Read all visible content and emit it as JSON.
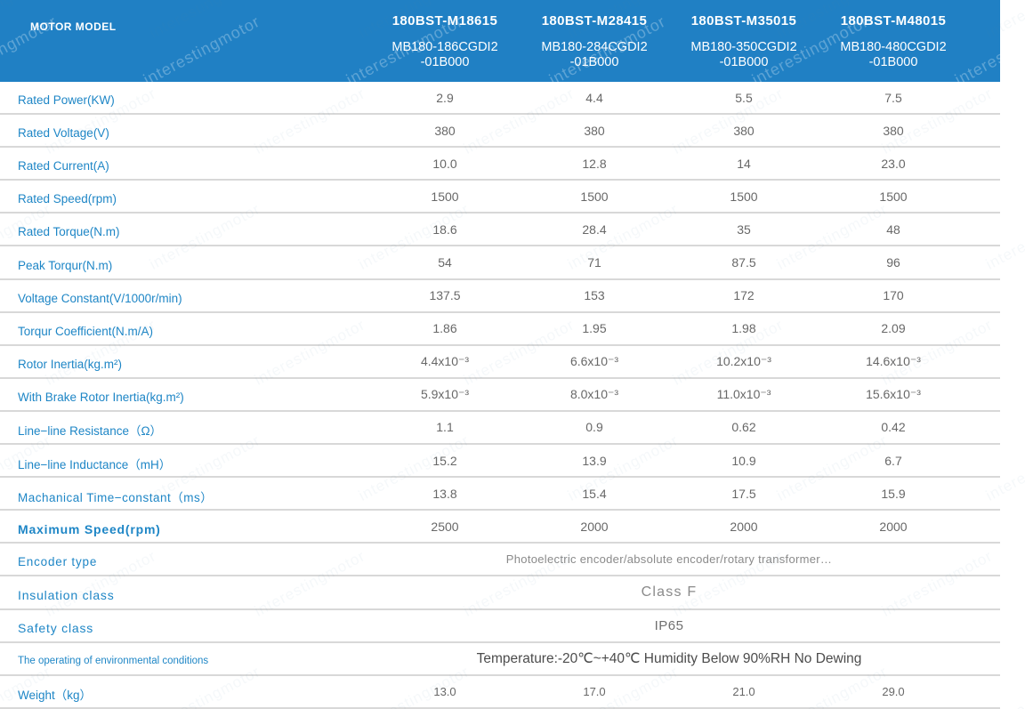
{
  "watermark": {
    "text": "interestingmotor"
  },
  "colors": {
    "header_bg": "#2080c4",
    "label_blue": "#1e86c6",
    "value_gray": "#686868",
    "line": "#d8d8d8"
  },
  "header": {
    "corner_label": "MOTOR MODEL",
    "columns": [
      {
        "model": "180BST-M18615",
        "code_line1": "MB180-186CGDI2",
        "code_line2": "-01B000"
      },
      {
        "model": "180BST-M28415",
        "code_line1": "MB180-284CGDI2",
        "code_line2": "-01B000"
      },
      {
        "model": "180BST-M35015",
        "code_line1": "MB180-350CGDI2",
        "code_line2": "-01B000"
      },
      {
        "model": "180BST-M48015",
        "code_line1": "MB180-480CGDI2",
        "code_line2": "-01B000"
      }
    ]
  },
  "rows": [
    {
      "label": "Rated Power(KW)",
      "values": [
        "2.9",
        "4.4",
        "5.5",
        "7.5"
      ]
    },
    {
      "label": "Rated Voltage(V)",
      "values": [
        "380",
        "380",
        "380",
        "380"
      ]
    },
    {
      "label": "Rated Current(A)",
      "values": [
        "10.0",
        "12.8",
        "14",
        "23.0"
      ]
    },
    {
      "label": "Rated Speed(rpm)",
      "values": [
        "1500",
        "1500",
        "1500",
        "1500"
      ]
    },
    {
      "label": "Rated Torque(N.m)",
      "values": [
        "18.6",
        "28.4",
        "35",
        "48"
      ]
    },
    {
      "label": "Peak Torqur(N.m)",
      "values": [
        "54",
        "71",
        "87.5",
        "96"
      ]
    },
    {
      "label": "Voltage Constant(V/1000r/min)",
      "values": [
        "137.5",
        "153",
        "172",
        "170"
      ]
    },
    {
      "label": "Torqur Coefficient(N.m/A)",
      "values": [
        "1.86",
        "1.95",
        "1.98",
        "2.09"
      ]
    },
    {
      "label": "Rotor Inertia(kg.m²)",
      "values": [
        "4.4x10⁻³",
        "6.6x10⁻³",
        "10.2x10⁻³",
        "14.6x10⁻³"
      ]
    },
    {
      "label": "With Brake Rotor Inertia(kg.m²)",
      "values": [
        "5.9x10⁻³",
        "8.0x10⁻³",
        "11.0x10⁻³",
        "15.6x10⁻³"
      ]
    },
    {
      "label": "Line−line Resistance（Ω）",
      "values": [
        "1.1",
        "0.9",
        "0.62",
        "0.42"
      ]
    },
    {
      "label": "Line−line Inductance（mH）",
      "values": [
        "15.2",
        "13.9",
        "10.9",
        "6.7"
      ]
    },
    {
      "label": "Machanical Time−constant（ms）",
      "values": [
        "13.8",
        "15.4",
        "17.5",
        "15.9"
      ]
    },
    {
      "label": "Maximum Speed(rpm)",
      "values": [
        "2500",
        "2000",
        "2000",
        "2000"
      ]
    },
    {
      "label": "Encoder type",
      "merged": "Photoelectric encoder/absolute encoder/rotary transformer…"
    },
    {
      "label": "Insulation class",
      "merged": "Class F"
    },
    {
      "label": "Safety class",
      "merged": "IP65"
    },
    {
      "label": "The operating of environmental conditions",
      "merged": "Temperature:-20℃~+40℃  Humidity Below 90%RH No Dewing"
    },
    {
      "label": "Weight（kg）",
      "values": [
        "13.0",
        "17.0",
        "21.0",
        "29.0"
      ]
    }
  ]
}
